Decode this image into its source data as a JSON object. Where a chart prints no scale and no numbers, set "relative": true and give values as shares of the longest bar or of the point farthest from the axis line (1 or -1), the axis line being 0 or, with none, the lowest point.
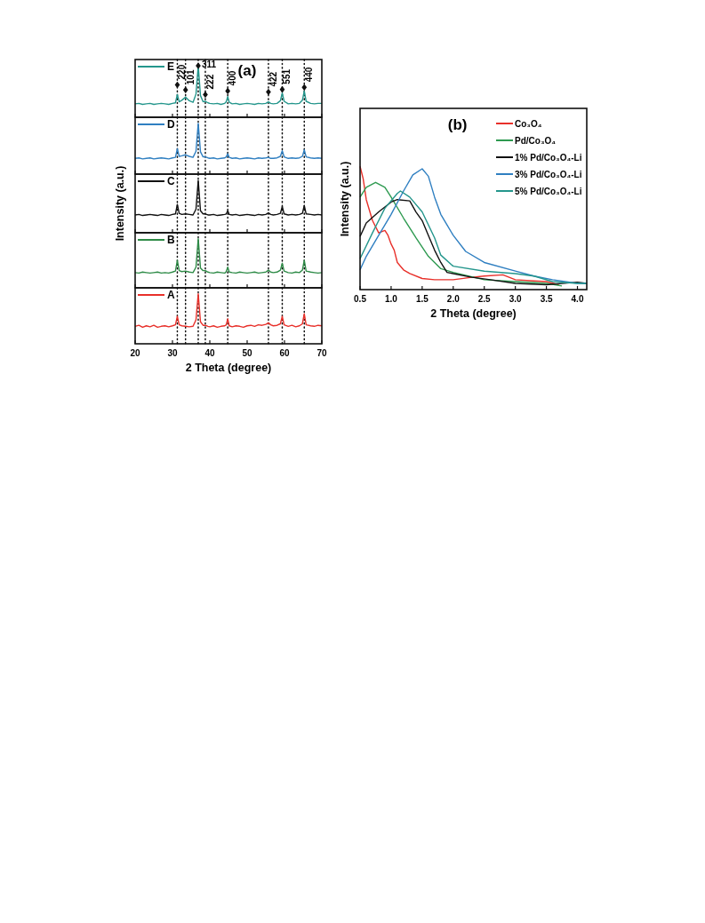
{
  "chart_data": [
    {
      "type": "line",
      "relative": true,
      "xlim": [
        20,
        70
      ],
      "xticks": [
        20,
        30,
        40,
        50,
        60,
        70
      ],
      "tick_labels": false,
      "legend": "top left",
      "x": [
        20,
        21,
        22,
        23,
        24,
        25,
        26,
        27,
        28,
        29,
        30,
        30.8,
        31.3,
        31.8,
        32.5,
        33.5,
        34.5,
        35.5,
        36.3,
        36.9,
        37.5,
        38.2,
        38.8,
        39.5,
        40,
        41,
        42,
        43,
        44,
        44.4,
        44.8,
        45.2,
        46,
        47,
        48,
        49,
        50,
        51,
        52,
        53,
        54,
        55,
        55.7,
        56.3,
        57,
        58,
        58.9,
        59.4,
        59.9,
        61,
        62,
        63,
        64,
        64.8,
        65.3,
        65.8,
        67,
        68,
        69,
        70
      ],
      "series": [
        {
          "name": "E",
          "color": "#24968c",
          "values": [
            0.26,
            0.27,
            0.25,
            0.26,
            0.27,
            0.25,
            0.26,
            0.27,
            0.26,
            0.25,
            0.27,
            0.28,
            0.44,
            0.3,
            0.33,
            0.39,
            0.32,
            0.29,
            0.45,
            1.0,
            0.42,
            0.3,
            0.31,
            0.28,
            0.27,
            0.26,
            0.27,
            0.25,
            0.27,
            0.3,
            0.4,
            0.29,
            0.26,
            0.27,
            0.25,
            0.26,
            0.27,
            0.26,
            0.25,
            0.27,
            0.26,
            0.27,
            0.3,
            0.27,
            0.26,
            0.27,
            0.32,
            0.47,
            0.31,
            0.26,
            0.27,
            0.26,
            0.27,
            0.33,
            0.51,
            0.31,
            0.27,
            0.26,
            0.27,
            0.27
          ]
        },
        {
          "type": "scatter",
          "marker": "diamond",
          "color": "#111111",
          "x": [
            31.3,
            33.5,
            36.9,
            38.8,
            44.8,
            55.7,
            59.4,
            65.3
          ],
          "values": [
            0.63,
            0.53,
            1.0,
            0.44,
            0.51,
            0.49,
            0.54,
            0.58
          ]
        }
      ],
      "ref_lines": [
        {
          "axis": "x",
          "value": 31.3,
          "line_style": "dotted"
        },
        {
          "axis": "x",
          "value": 33.5,
          "line_style": "dotted"
        },
        {
          "axis": "x",
          "value": 36.9,
          "line_style": "dotted"
        },
        {
          "axis": "x",
          "value": 38.8,
          "line_style": "dotted"
        },
        {
          "axis": "x",
          "value": 44.8,
          "line_style": "dotted"
        },
        {
          "axis": "x",
          "value": 55.7,
          "line_style": "dotted"
        },
        {
          "axis": "x",
          "value": 59.4,
          "line_style": "dotted"
        },
        {
          "axis": "x",
          "value": 65.3,
          "line_style": "dotted"
        }
      ],
      "annotations": [
        "(a)",
        {
          "text": "220",
          "x": 31.3,
          "y": 0.63
        },
        {
          "text": "101",
          "x": 33.5,
          "y": 0.53
        },
        {
          "text": "311",
          "x": 36.9,
          "y": 1.0
        },
        {
          "text": "222",
          "x": 38.8,
          "y": 0.44
        },
        {
          "text": "400",
          "x": 44.8,
          "y": 0.51
        },
        {
          "text": "422",
          "x": 55.7,
          "y": 0.49
        },
        {
          "text": "551",
          "x": 59.4,
          "y": 0.54
        },
        {
          "text": "440",
          "x": 65.3,
          "y": 0.58
        }
      ]
    },
    {
      "type": "line",
      "relative": true,
      "xlim": [
        20,
        70
      ],
      "xticks": [
        20,
        30,
        40,
        50,
        60,
        70
      ],
      "tick_labels": false,
      "legend": "top left",
      "x": [
        20,
        21,
        22,
        23,
        24,
        25,
        26,
        27,
        28,
        29,
        30,
        30.8,
        31.3,
        31.8,
        32.5,
        33.5,
        34.5,
        35.5,
        36.3,
        36.9,
        37.5,
        38.2,
        38.8,
        39.5,
        40,
        41,
        42,
        43,
        44,
        44.4,
        44.8,
        45.2,
        46,
        47,
        48,
        49,
        50,
        51,
        52,
        53,
        54,
        55,
        55.7,
        56.3,
        57,
        58,
        58.9,
        59.4,
        59.9,
        61,
        62,
        63,
        64,
        64.8,
        65.3,
        65.8,
        67,
        68,
        69,
        70
      ],
      "series": [
        {
          "name": "D",
          "color": "#2f7fc1",
          "values": [
            0.31,
            0.32,
            0.3,
            0.31,
            0.32,
            0.3,
            0.31,
            0.32,
            0.31,
            0.3,
            0.32,
            0.33,
            0.5,
            0.35,
            0.36,
            0.38,
            0.35,
            0.33,
            0.45,
            1.0,
            0.44,
            0.34,
            0.34,
            0.32,
            0.31,
            0.32,
            0.3,
            0.31,
            0.32,
            0.34,
            0.4,
            0.33,
            0.31,
            0.32,
            0.3,
            0.31,
            0.32,
            0.31,
            0.3,
            0.32,
            0.31,
            0.32,
            0.33,
            0.31,
            0.31,
            0.32,
            0.35,
            0.46,
            0.34,
            0.31,
            0.32,
            0.31,
            0.32,
            0.35,
            0.48,
            0.34,
            0.32,
            0.31,
            0.32,
            0.31
          ]
        }
      ],
      "ref_lines": [
        {
          "axis": "x",
          "value": 31.3,
          "line_style": "dotted"
        },
        {
          "axis": "x",
          "value": 33.5,
          "line_style": "dotted"
        },
        {
          "axis": "x",
          "value": 36.9,
          "line_style": "dotted"
        },
        {
          "axis": "x",
          "value": 38.8,
          "line_style": "dotted"
        },
        {
          "axis": "x",
          "value": 44.8,
          "line_style": "dotted"
        },
        {
          "axis": "x",
          "value": 55.7,
          "line_style": "dotted"
        },
        {
          "axis": "x",
          "value": 59.4,
          "line_style": "dotted"
        },
        {
          "axis": "x",
          "value": 65.3,
          "line_style": "dotted"
        }
      ]
    },
    {
      "type": "line",
      "relative": true,
      "xlim": [
        20,
        70
      ],
      "xticks": [
        20,
        30,
        40,
        50,
        60,
        70
      ],
      "tick_labels": false,
      "legend": "top left",
      "ylabel": "Intensity (a.u.)",
      "x": [
        20,
        21,
        22,
        23,
        24,
        25,
        26,
        27,
        28,
        29,
        30,
        30.8,
        31.3,
        31.8,
        32.5,
        33.5,
        34.5,
        35.5,
        36.3,
        36.9,
        37.5,
        38.2,
        38.8,
        39.5,
        40,
        41,
        42,
        43,
        44,
        44.4,
        44.8,
        45.2,
        46,
        47,
        48,
        49,
        50,
        51,
        52,
        53,
        54,
        55,
        55.7,
        56.3,
        57,
        58,
        58.9,
        59.4,
        59.9,
        61,
        62,
        63,
        64,
        64.8,
        65.3,
        65.8,
        67,
        68,
        69,
        70
      ],
      "series": [
        {
          "name": "C",
          "color": "#111111",
          "values": [
            0.34,
            0.35,
            0.33,
            0.34,
            0.35,
            0.34,
            0.33,
            0.35,
            0.34,
            0.33,
            0.35,
            0.36,
            0.54,
            0.37,
            0.35,
            0.36,
            0.35,
            0.34,
            0.45,
            1.0,
            0.42,
            0.36,
            0.36,
            0.34,
            0.34,
            0.35,
            0.33,
            0.34,
            0.35,
            0.36,
            0.42,
            0.35,
            0.34,
            0.35,
            0.33,
            0.34,
            0.35,
            0.34,
            0.33,
            0.35,
            0.34,
            0.35,
            0.38,
            0.35,
            0.34,
            0.35,
            0.37,
            0.5,
            0.36,
            0.34,
            0.35,
            0.34,
            0.35,
            0.37,
            0.52,
            0.36,
            0.35,
            0.34,
            0.35,
            0.34
          ]
        }
      ],
      "ref_lines": [
        {
          "axis": "x",
          "value": 31.3,
          "line_style": "dotted"
        },
        {
          "axis": "x",
          "value": 33.5,
          "line_style": "dotted"
        },
        {
          "axis": "x",
          "value": 36.9,
          "line_style": "dotted"
        },
        {
          "axis": "x",
          "value": 38.8,
          "line_style": "dotted"
        },
        {
          "axis": "x",
          "value": 44.8,
          "line_style": "dotted"
        },
        {
          "axis": "x",
          "value": 55.7,
          "line_style": "dotted"
        },
        {
          "axis": "x",
          "value": 59.4,
          "line_style": "dotted"
        },
        {
          "axis": "x",
          "value": 65.3,
          "line_style": "dotted"
        }
      ]
    },
    {
      "type": "line",
      "relative": true,
      "xlim": [
        20,
        70
      ],
      "xticks": [
        20,
        30,
        40,
        50,
        60,
        70
      ],
      "tick_labels": false,
      "legend": "top left",
      "x": [
        20,
        21,
        22,
        23,
        24,
        25,
        26,
        27,
        28,
        29,
        30,
        30.8,
        31.3,
        31.8,
        32.5,
        33.5,
        34.5,
        35.5,
        36.3,
        36.9,
        37.5,
        38.2,
        38.8,
        39.5,
        40,
        41,
        42,
        43,
        44,
        44.4,
        44.8,
        45.2,
        46,
        47,
        48,
        49,
        50,
        51,
        52,
        53,
        54,
        55,
        55.7,
        56.3,
        57,
        58,
        58.9,
        59.4,
        59.9,
        61,
        62,
        63,
        64,
        64.8,
        65.3,
        65.8,
        67,
        68,
        69,
        70
      ],
      "series": [
        {
          "name": "B",
          "color": "#2e8b47",
          "values": [
            0.31,
            0.3,
            0.32,
            0.31,
            0.3,
            0.31,
            0.32,
            0.3,
            0.31,
            0.3,
            0.32,
            0.34,
            0.56,
            0.35,
            0.33,
            0.34,
            0.32,
            0.31,
            0.42,
            1.0,
            0.4,
            0.35,
            0.35,
            0.32,
            0.31,
            0.3,
            0.32,
            0.31,
            0.3,
            0.33,
            0.42,
            0.32,
            0.31,
            0.3,
            0.32,
            0.31,
            0.3,
            0.31,
            0.32,
            0.3,
            0.31,
            0.32,
            0.36,
            0.32,
            0.31,
            0.32,
            0.36,
            0.5,
            0.34,
            0.31,
            0.3,
            0.32,
            0.31,
            0.36,
            0.56,
            0.34,
            0.32,
            0.31,
            0.3,
            0.31
          ]
        }
      ],
      "ref_lines": [
        {
          "axis": "x",
          "value": 31.3,
          "line_style": "dotted"
        },
        {
          "axis": "x",
          "value": 33.5,
          "line_style": "dotted"
        },
        {
          "axis": "x",
          "value": 36.9,
          "line_style": "dotted"
        },
        {
          "axis": "x",
          "value": 38.8,
          "line_style": "dotted"
        },
        {
          "axis": "x",
          "value": 44.8,
          "line_style": "dotted"
        },
        {
          "axis": "x",
          "value": 55.7,
          "line_style": "dotted"
        },
        {
          "axis": "x",
          "value": 59.4,
          "line_style": "dotted"
        },
        {
          "axis": "x",
          "value": 65.3,
          "line_style": "dotted"
        }
      ]
    },
    {
      "type": "line",
      "relative": true,
      "xlim": [
        20,
        70
      ],
      "xticks": [
        20,
        30,
        40,
        50,
        60,
        70
      ],
      "tick_labels": "x",
      "legend": "top left",
      "xlabel": "2 Theta (degree)",
      "x": [
        20,
        21,
        22,
        23,
        24,
        25,
        26,
        27,
        28,
        29,
        30,
        30.8,
        31.3,
        31.8,
        32.5,
        33.5,
        34.5,
        35.5,
        36.3,
        36.9,
        37.5,
        38.2,
        38.8,
        39.5,
        40,
        41,
        42,
        43,
        44,
        44.4,
        44.8,
        45.2,
        46,
        47,
        48,
        49,
        50,
        51,
        52,
        53,
        54,
        55,
        55.7,
        56.3,
        57,
        58,
        58.9,
        59.4,
        59.9,
        61,
        62,
        63,
        64,
        64.8,
        65.3,
        65.8,
        67,
        68,
        69,
        70
      ],
      "series": [
        {
          "name": "A",
          "color": "#e8302a",
          "values": [
            0.35,
            0.37,
            0.33,
            0.36,
            0.34,
            0.37,
            0.33,
            0.35,
            0.36,
            0.34,
            0.36,
            0.38,
            0.55,
            0.38,
            0.36,
            0.35,
            0.34,
            0.35,
            0.48,
            1.0,
            0.44,
            0.37,
            0.37,
            0.35,
            0.34,
            0.36,
            0.33,
            0.35,
            0.36,
            0.38,
            0.5,
            0.36,
            0.34,
            0.36,
            0.35,
            0.33,
            0.36,
            0.37,
            0.35,
            0.38,
            0.37,
            0.39,
            0.42,
            0.38,
            0.36,
            0.37,
            0.4,
            0.55,
            0.38,
            0.35,
            0.37,
            0.34,
            0.36,
            0.4,
            0.6,
            0.38,
            0.36,
            0.35,
            0.37,
            0.36
          ]
        }
      ],
      "ref_lines": [
        {
          "axis": "x",
          "value": 31.3,
          "line_style": "dotted"
        },
        {
          "axis": "x",
          "value": 33.5,
          "line_style": "dotted"
        },
        {
          "axis": "x",
          "value": 36.9,
          "line_style": "dotted"
        },
        {
          "axis": "x",
          "value": 38.8,
          "line_style": "dotted"
        },
        {
          "axis": "x",
          "value": 44.8,
          "line_style": "dotted"
        },
        {
          "axis": "x",
          "value": 55.7,
          "line_style": "dotted"
        },
        {
          "axis": "x",
          "value": 59.4,
          "line_style": "dotted"
        },
        {
          "axis": "x",
          "value": 65.3,
          "line_style": "dotted"
        }
      ]
    },
    {
      "type": "line",
      "relative": true,
      "xlim": [
        0.5,
        4.15
      ],
      "xticks": [
        0.5,
        {
          "value": 1,
          "label": "1.0"
        },
        1.5,
        {
          "value": 2,
          "label": "2.0"
        },
        2.5,
        {
          "value": 3,
          "label": "3.0"
        },
        3.5,
        {
          "value": 4,
          "label": "4.0"
        }
      ],
      "legend": "top right",
      "xlabel": "2 Theta (degree)",
      "ylabel": "Intensity (a.u.)",
      "annotations": [
        "(b)"
      ],
      "series": [
        {
          "name": "Co₃O₄",
          "color": "#e8302a",
          "x": [
            0.5,
            0.55,
            0.6,
            0.7,
            0.8,
            0.9,
            0.95,
            1.0,
            1.05,
            1.1,
            1.2,
            1.3,
            1.5,
            1.7,
            2.0,
            2.3,
            2.5,
            2.8,
            3.0,
            3.3,
            3.5,
            3.7
          ],
          "values": [
            1.0,
            0.9,
            0.73,
            0.56,
            0.46,
            0.48,
            0.44,
            0.37,
            0.32,
            0.22,
            0.16,
            0.13,
            0.09,
            0.08,
            0.08,
            0.1,
            0.11,
            0.12,
            0.08,
            0.07,
            0.065,
            0.04
          ]
        },
        {
          "name": "Pd/Co₃O₄",
          "color": "#2e9a50",
          "x": [
            0.5,
            0.6,
            0.75,
            0.9,
            1.0,
            1.2,
            1.4,
            1.6,
            1.8,
            2.0,
            2.5,
            3.0,
            3.5,
            3.75
          ],
          "values": [
            0.75,
            0.83,
            0.87,
            0.83,
            0.75,
            0.58,
            0.42,
            0.27,
            0.17,
            0.14,
            0.08,
            0.065,
            0.05,
            0.03
          ]
        },
        {
          "name": "1% Pd/Co₃O₄-Li",
          "color": "#111111",
          "x": [
            0.5,
            0.6,
            0.8,
            1.0,
            1.1,
            1.3,
            1.4,
            1.5,
            1.6,
            1.7,
            1.8,
            1.9,
            2.0,
            2.3,
            2.6,
            3.0,
            3.5,
            4.0,
            4.15
          ],
          "values": [
            0.43,
            0.54,
            0.63,
            0.71,
            0.73,
            0.72,
            0.63,
            0.56,
            0.44,
            0.32,
            0.22,
            0.14,
            0.13,
            0.1,
            0.08,
            0.05,
            0.04,
            0.06,
            0.05
          ]
        },
        {
          "name": "3% Pd/Co₃O₄-Li",
          "color": "#2f7fc1",
          "x": [
            0.5,
            0.6,
            0.8,
            1.0,
            1.2,
            1.35,
            1.5,
            1.6,
            1.7,
            1.8,
            2.0,
            2.2,
            2.5,
            3.0,
            3.3,
            3.6,
            4.0,
            4.15
          ],
          "values": [
            0.16,
            0.27,
            0.44,
            0.61,
            0.8,
            0.93,
            0.98,
            0.92,
            0.75,
            0.61,
            0.44,
            0.31,
            0.22,
            0.15,
            0.11,
            0.08,
            0.05,
            0.05
          ]
        },
        {
          "name": "5% Pd/Co₃O₄-Li",
          "color": "#24968c",
          "x": [
            0.5,
            0.7,
            0.9,
            1.1,
            1.15,
            1.3,
            1.5,
            1.7,
            1.8,
            2.0,
            2.5,
            3.0,
            3.3,
            3.6,
            4.0,
            4.15
          ],
          "values": [
            0.25,
            0.46,
            0.66,
            0.78,
            0.8,
            0.75,
            0.63,
            0.42,
            0.28,
            0.19,
            0.15,
            0.13,
            0.11,
            0.065,
            0.05,
            0.05
          ]
        }
      ]
    }
  ]
}
